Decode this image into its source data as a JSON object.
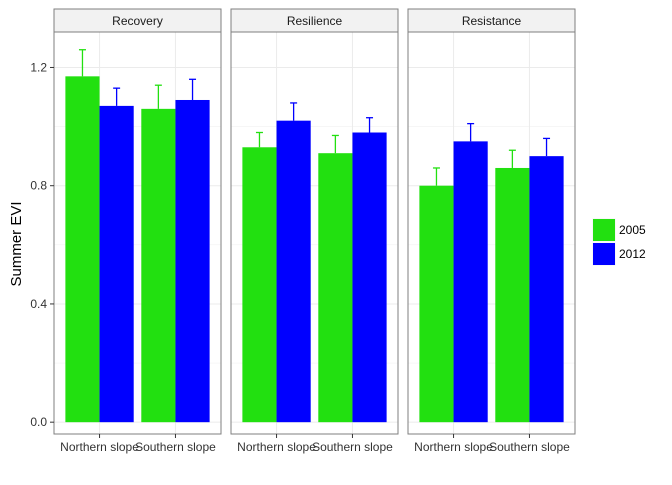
{
  "chart_data": {
    "type": "bar",
    "ylabel": "Summer EVI",
    "xlabel": "",
    "ylim": [
      -0.04,
      1.32
    ],
    "yticks": [
      0.0,
      0.4,
      0.8,
      1.2
    ],
    "ytick_labels": [
      "0.0",
      "0.4",
      "0.8",
      "1.2"
    ],
    "grid": true,
    "legend_position": "right",
    "categories": [
      "Northern slope",
      "Southern slope"
    ],
    "series": [
      {
        "name": "2005",
        "color": "#22e010"
      },
      {
        "name": "2012",
        "color": "#0000ff"
      }
    ],
    "panels": [
      {
        "title": "Recovery",
        "values": {
          "2005": [
            1.17,
            1.06
          ],
          "2012": [
            1.07,
            1.09
          ]
        },
        "errors": {
          "2005": [
            0.09,
            0.08
          ],
          "2012": [
            0.06,
            0.07
          ]
        }
      },
      {
        "title": "Resilience",
        "values": {
          "2005": [
            0.93,
            0.91
          ],
          "2012": [
            1.02,
            0.98
          ]
        },
        "errors": {
          "2005": [
            0.05,
            0.06
          ],
          "2012": [
            0.06,
            0.05
          ]
        }
      },
      {
        "title": "Resistance",
        "values": {
          "2005": [
            0.8,
            0.86
          ],
          "2012": [
            0.95,
            0.9
          ]
        },
        "errors": {
          "2005": [
            0.06,
            0.06
          ],
          "2012": [
            0.06,
            0.06
          ]
        }
      }
    ]
  }
}
